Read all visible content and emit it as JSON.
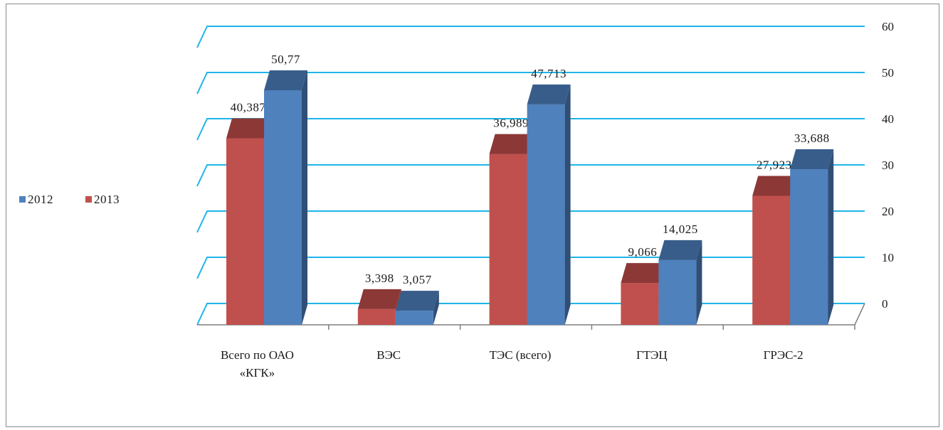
{
  "chart_data": {
    "type": "bar",
    "categories": [
      "Всего по ОАО «КГК»",
      "ВЭС",
      "ТЭС (всего)",
      "ГТЭЦ",
      "ГРЭС-2"
    ],
    "category_lines": [
      [
        "Всего по ОАО",
        "«КГК»"
      ],
      [
        "ВЭС"
      ],
      [
        "ТЭС (всего)"
      ],
      [
        "ГТЭЦ"
      ],
      [
        "ГРЭС-2"
      ]
    ],
    "series": [
      {
        "name": "2013",
        "values": [
          40.387,
          3.398,
          36.989,
          9.066,
          27.923
        ],
        "labels": [
          "40,387",
          "3,398",
          "36,989",
          "9,066",
          "27,923"
        ],
        "color": "#c0504d",
        "top_color": "#8c3836",
        "side_color": "#8c3836"
      },
      {
        "name": "2012",
        "values": [
          50.77,
          3.057,
          47.713,
          14.025,
          33.688
        ],
        "labels": [
          "50,77",
          "3,057",
          "47,713",
          "14,025",
          "33,688"
        ],
        "color": "#4f81bd",
        "top_color": "#385d8a",
        "side_color": "#2f4f77"
      }
    ],
    "legend_order": [
      "2012",
      "2013"
    ],
    "ylim": [
      0,
      60
    ],
    "yticks": [
      "0",
      "10",
      "20",
      "30",
      "40",
      "50",
      "60"
    ],
    "grid": true,
    "grid_color": "#1fb5e8",
    "legend_position": "left",
    "y_axis_side": "right"
  }
}
